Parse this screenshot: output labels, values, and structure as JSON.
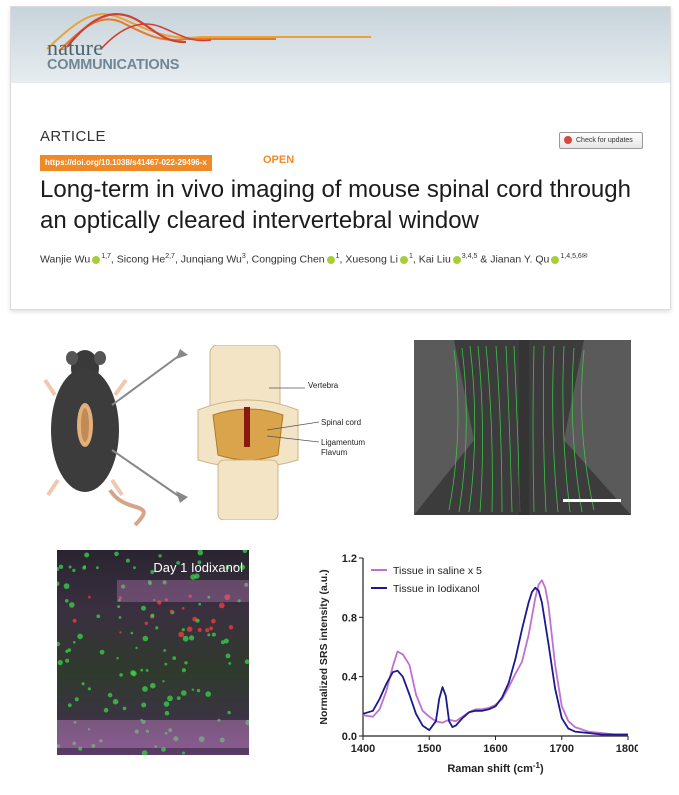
{
  "header": {
    "logo_line1": "nature",
    "logo_line2": "COMMUNICATIONS",
    "article_type": "ARTICLE",
    "doi": "https://doi.org/10.1038/s41467-022-29496-x",
    "access": "OPEN",
    "check_updates": "Check for updates",
    "title": "Long-term in vivo imaging of mouse spinal cord through an optically cleared intervertebral window"
  },
  "authors": [
    {
      "name": "Wanjie Wu",
      "orcid": true,
      "aff": "1,7"
    },
    {
      "name": "Sicong He",
      "orcid": false,
      "aff": "2,7"
    },
    {
      "name": "Junqiang Wu",
      "orcid": false,
      "aff": "3"
    },
    {
      "name": "Congping Chen",
      "orcid": true,
      "aff": "1"
    },
    {
      "name": "Xuesong Li",
      "orcid": true,
      "aff": "1"
    },
    {
      "name": "Kai Liu",
      "orcid": true,
      "aff": "3,4,5"
    },
    {
      "name": "Jianan Y. Qu",
      "orcid": true,
      "aff": "1,4,5,6✉"
    }
  ],
  "author_separator": "&",
  "figure": {
    "labels": {
      "vertebra": "Vertebra",
      "spinal_cord": "Spinal cord",
      "ligamentum": "Ligamentum",
      "flavum": "Flavum"
    },
    "panel_c_label": "Day 1 Iodixanol",
    "colors": {
      "green": "#3ad44a",
      "red": "#ff3a3a",
      "magenta": "#c884c8",
      "navy": "#1a1a8c"
    }
  },
  "chart_data": {
    "type": "line",
    "xlabel": "Raman shift (cm",
    "xlabel_sup": "-1",
    "xlabel_end": ")",
    "ylabel": "Normalized SRS intensity (a.u.)",
    "xlim": [
      1400,
      1800
    ],
    "ylim": [
      0.0,
      1.2
    ],
    "xticks": [
      1400,
      1500,
      1600,
      1700,
      1800
    ],
    "yticks": [
      0.0,
      0.4,
      0.8,
      1.2
    ],
    "ytick_labels": [
      "0.0",
      "0.4",
      "0.8",
      "1.2"
    ],
    "legend_position": "top-left",
    "series": [
      {
        "name": "Tissue in saline x 5",
        "color": "#c070d0",
        "x": [
          1400,
          1415,
          1425,
          1435,
          1445,
          1452,
          1460,
          1470,
          1480,
          1490,
          1500,
          1510,
          1520,
          1530,
          1540,
          1550,
          1560,
          1570,
          1580,
          1590,
          1600,
          1610,
          1620,
          1630,
          1640,
          1650,
          1660,
          1665,
          1670,
          1675,
          1680,
          1690,
          1700,
          1710,
          1720,
          1740,
          1760,
          1780,
          1800
        ],
        "y": [
          0.14,
          0.13,
          0.18,
          0.3,
          0.47,
          0.57,
          0.55,
          0.48,
          0.28,
          0.17,
          0.13,
          0.1,
          0.09,
          0.11,
          0.1,
          0.13,
          0.16,
          0.18,
          0.18,
          0.19,
          0.21,
          0.25,
          0.33,
          0.42,
          0.5,
          0.68,
          0.93,
          1.02,
          1.05,
          1.0,
          0.88,
          0.48,
          0.2,
          0.1,
          0.06,
          0.03,
          0.02,
          0.01,
          0.01
        ]
      },
      {
        "name": "Tissue in Iodixanol",
        "color": "#1a1a8c",
        "x": [
          1400,
          1415,
          1425,
          1435,
          1445,
          1452,
          1460,
          1470,
          1480,
          1490,
          1500,
          1510,
          1515,
          1520,
          1525,
          1530,
          1535,
          1540,
          1550,
          1560,
          1570,
          1580,
          1590,
          1600,
          1610,
          1620,
          1630,
          1640,
          1650,
          1655,
          1660,
          1665,
          1670,
          1680,
          1690,
          1700,
          1710,
          1720,
          1740,
          1760,
          1780,
          1800
        ],
        "y": [
          0.15,
          0.17,
          0.25,
          0.35,
          0.43,
          0.44,
          0.4,
          0.28,
          0.15,
          0.07,
          0.04,
          0.1,
          0.25,
          0.33,
          0.27,
          0.1,
          0.06,
          0.07,
          0.12,
          0.16,
          0.17,
          0.17,
          0.18,
          0.2,
          0.26,
          0.36,
          0.52,
          0.72,
          0.9,
          0.97,
          1.0,
          0.98,
          0.9,
          0.62,
          0.32,
          0.12,
          0.05,
          0.03,
          0.02,
          0.01,
          0.01,
          0.01
        ]
      }
    ]
  }
}
